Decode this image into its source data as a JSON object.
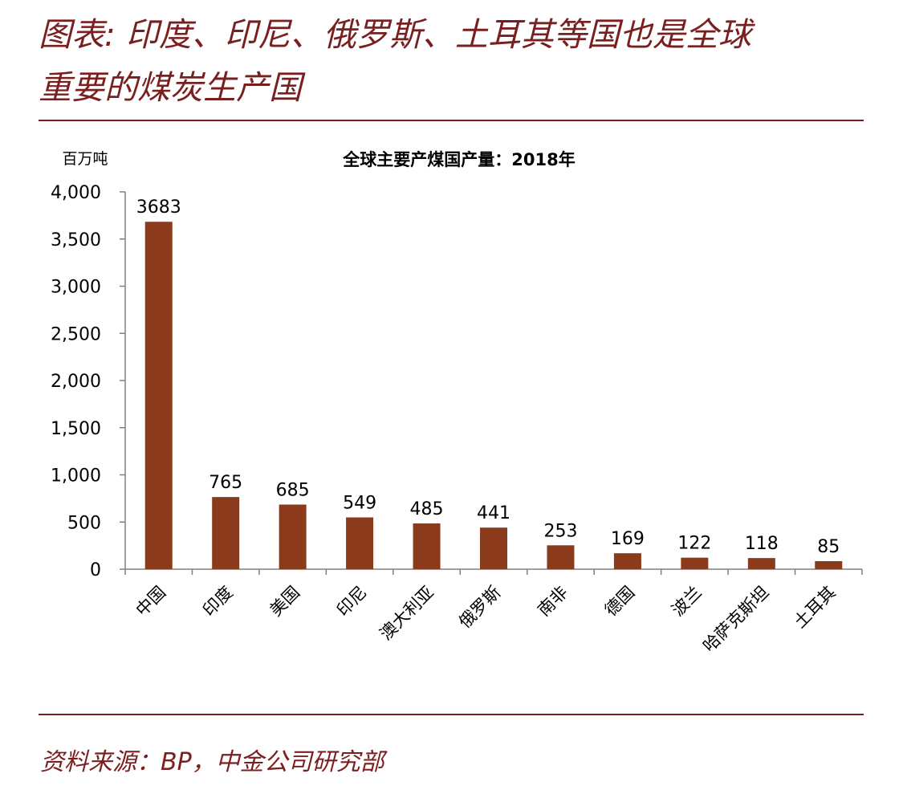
{
  "figure": {
    "title_line1": "图表: 印度、印尼、俄罗斯、土耳其等国也是全球",
    "title_line2": "重要的煤炭生产国",
    "source": "资料来源：BP，中金公司研究部"
  },
  "colors": {
    "accent": "#7a1f1f",
    "bar": "#8b3a1c",
    "axis": "#808080",
    "text": "#000000"
  },
  "chart_data": {
    "type": "bar",
    "title": "全球主要产煤国产量：2018年",
    "unit_label": "百万吨",
    "xlabel": "",
    "ylabel": "百万吨",
    "categories": [
      "中国",
      "印度",
      "美国",
      "印尼",
      "澳大利亚",
      "俄罗斯",
      "南非",
      "德国",
      "波兰",
      "哈萨克斯坦",
      "土耳其"
    ],
    "values": [
      3683,
      765,
      685,
      549,
      485,
      441,
      253,
      169,
      122,
      118,
      85
    ],
    "ylim": [
      0,
      4000
    ],
    "yticks": [
      0,
      500,
      1000,
      1500,
      2000,
      2500,
      3000,
      3500,
      4000
    ],
    "ytick_labels": [
      "0",
      "500",
      "1,000",
      "1,500",
      "2,000",
      "2,500",
      "3,000",
      "3,500",
      "4,000"
    ],
    "data_labels": [
      "3683",
      "765",
      "685",
      "549",
      "485",
      "441",
      "253",
      "169",
      "122",
      "118",
      "85"
    ],
    "grid": false,
    "legend": "none"
  }
}
